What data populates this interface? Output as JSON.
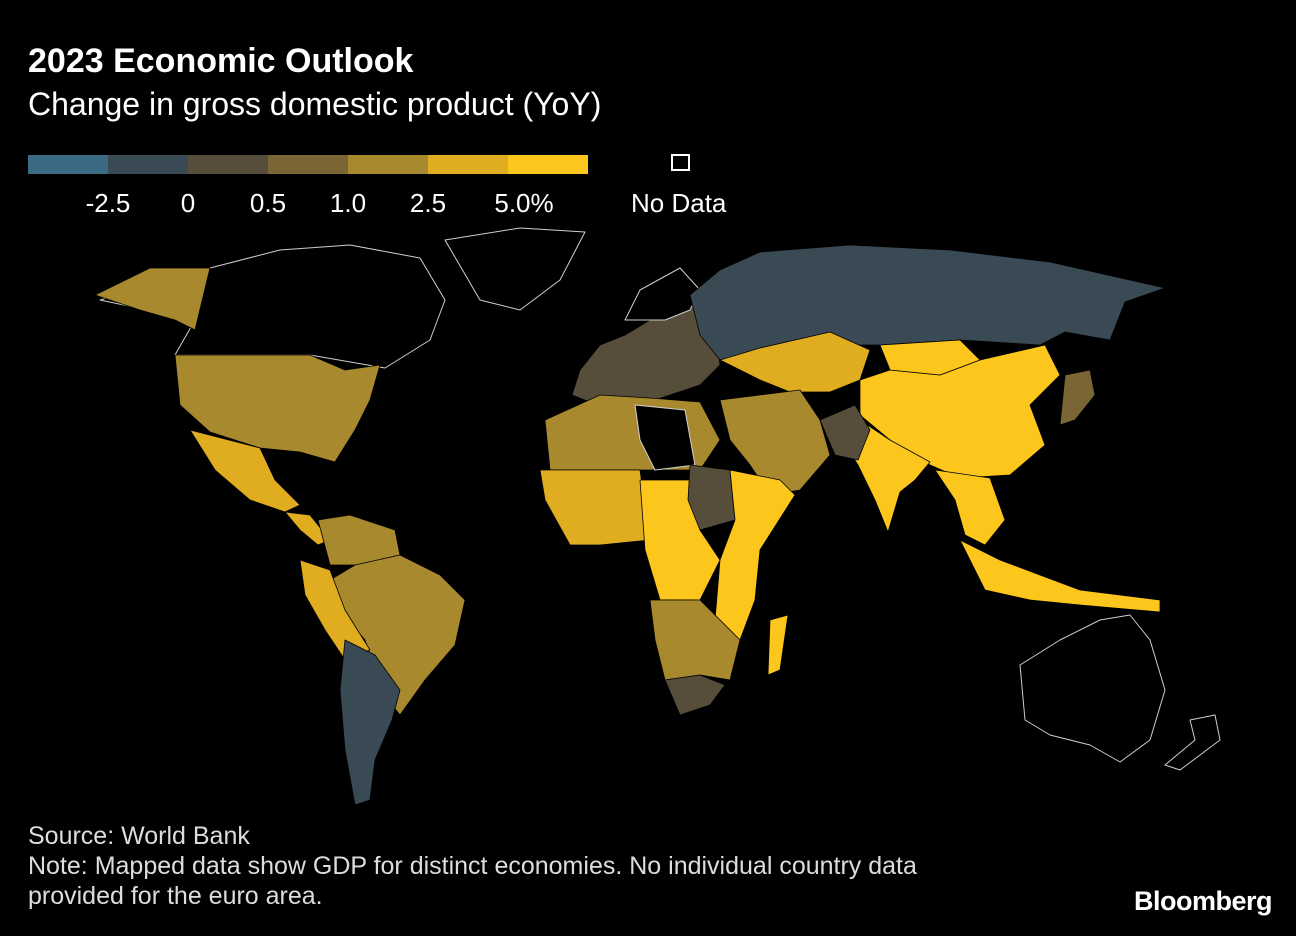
{
  "header": {
    "title": "2023 Economic Outlook",
    "subtitle": "Change in gross domestic product (YoY)"
  },
  "legend": {
    "bins": [
      "#3b6a85",
      "#3a4a55",
      "#574d3b",
      "#7a6535",
      "#a8892e",
      "#e0ac20",
      "#fdc61c"
    ],
    "breaks": [
      "-2.5",
      "0",
      "0.5",
      "1.0",
      "2.5",
      "5.0%"
    ],
    "no_data_label": "No Data"
  },
  "map": {
    "no_data_color": "#000000",
    "outline_color": "#cfcfcf",
    "regions": [
      {
        "name": "Canada",
        "bin": null
      },
      {
        "name": "Greenland",
        "bin": null
      },
      {
        "name": "Alaska",
        "bin": 4
      },
      {
        "name": "United States",
        "bin": 4
      },
      {
        "name": "Mexico",
        "bin": 5
      },
      {
        "name": "Central America",
        "bin": 5
      },
      {
        "name": "Colombia/Venezuela",
        "bin": 4
      },
      {
        "name": "Brazil",
        "bin": 4
      },
      {
        "name": "Peru/Bolivia",
        "bin": 5
      },
      {
        "name": "Argentina/Chile",
        "bin": 1
      },
      {
        "name": "Europe",
        "bin": 2
      },
      {
        "name": "Scandinavia",
        "bin": null
      },
      {
        "name": "Russia",
        "bin": 1
      },
      {
        "name": "Kazakhstan/Central Asia",
        "bin": 5
      },
      {
        "name": "China",
        "bin": 6
      },
      {
        "name": "Mongolia",
        "bin": 6
      },
      {
        "name": "Japan",
        "bin": 3
      },
      {
        "name": "India",
        "bin": 6
      },
      {
        "name": "Southeast Asia",
        "bin": 6
      },
      {
        "name": "Indonesia",
        "bin": 6
      },
      {
        "name": "Middle East",
        "bin": 4
      },
      {
        "name": "Afghanistan/Pakistan",
        "bin": 2
      },
      {
        "name": "North Africa",
        "bin": 4
      },
      {
        "name": "Libya",
        "bin": null
      },
      {
        "name": "West Africa",
        "bin": 5
      },
      {
        "name": "Central Africa",
        "bin": 6
      },
      {
        "name": "Sudan",
        "bin": 2
      },
      {
        "name": "East Africa",
        "bin": 6
      },
      {
        "name": "Southern Africa",
        "bin": 4
      },
      {
        "name": "South Africa",
        "bin": 2
      },
      {
        "name": "Madagascar",
        "bin": 6
      },
      {
        "name": "Australia",
        "bin": null
      },
      {
        "name": "New Zealand",
        "bin": null
      }
    ]
  },
  "footer": {
    "source": "Source: World Bank",
    "note_line1": "Note: Mapped data show GDP for distinct economies. No individual country data",
    "note_line2": "provided for the euro area.",
    "brand": "Bloomberg"
  }
}
